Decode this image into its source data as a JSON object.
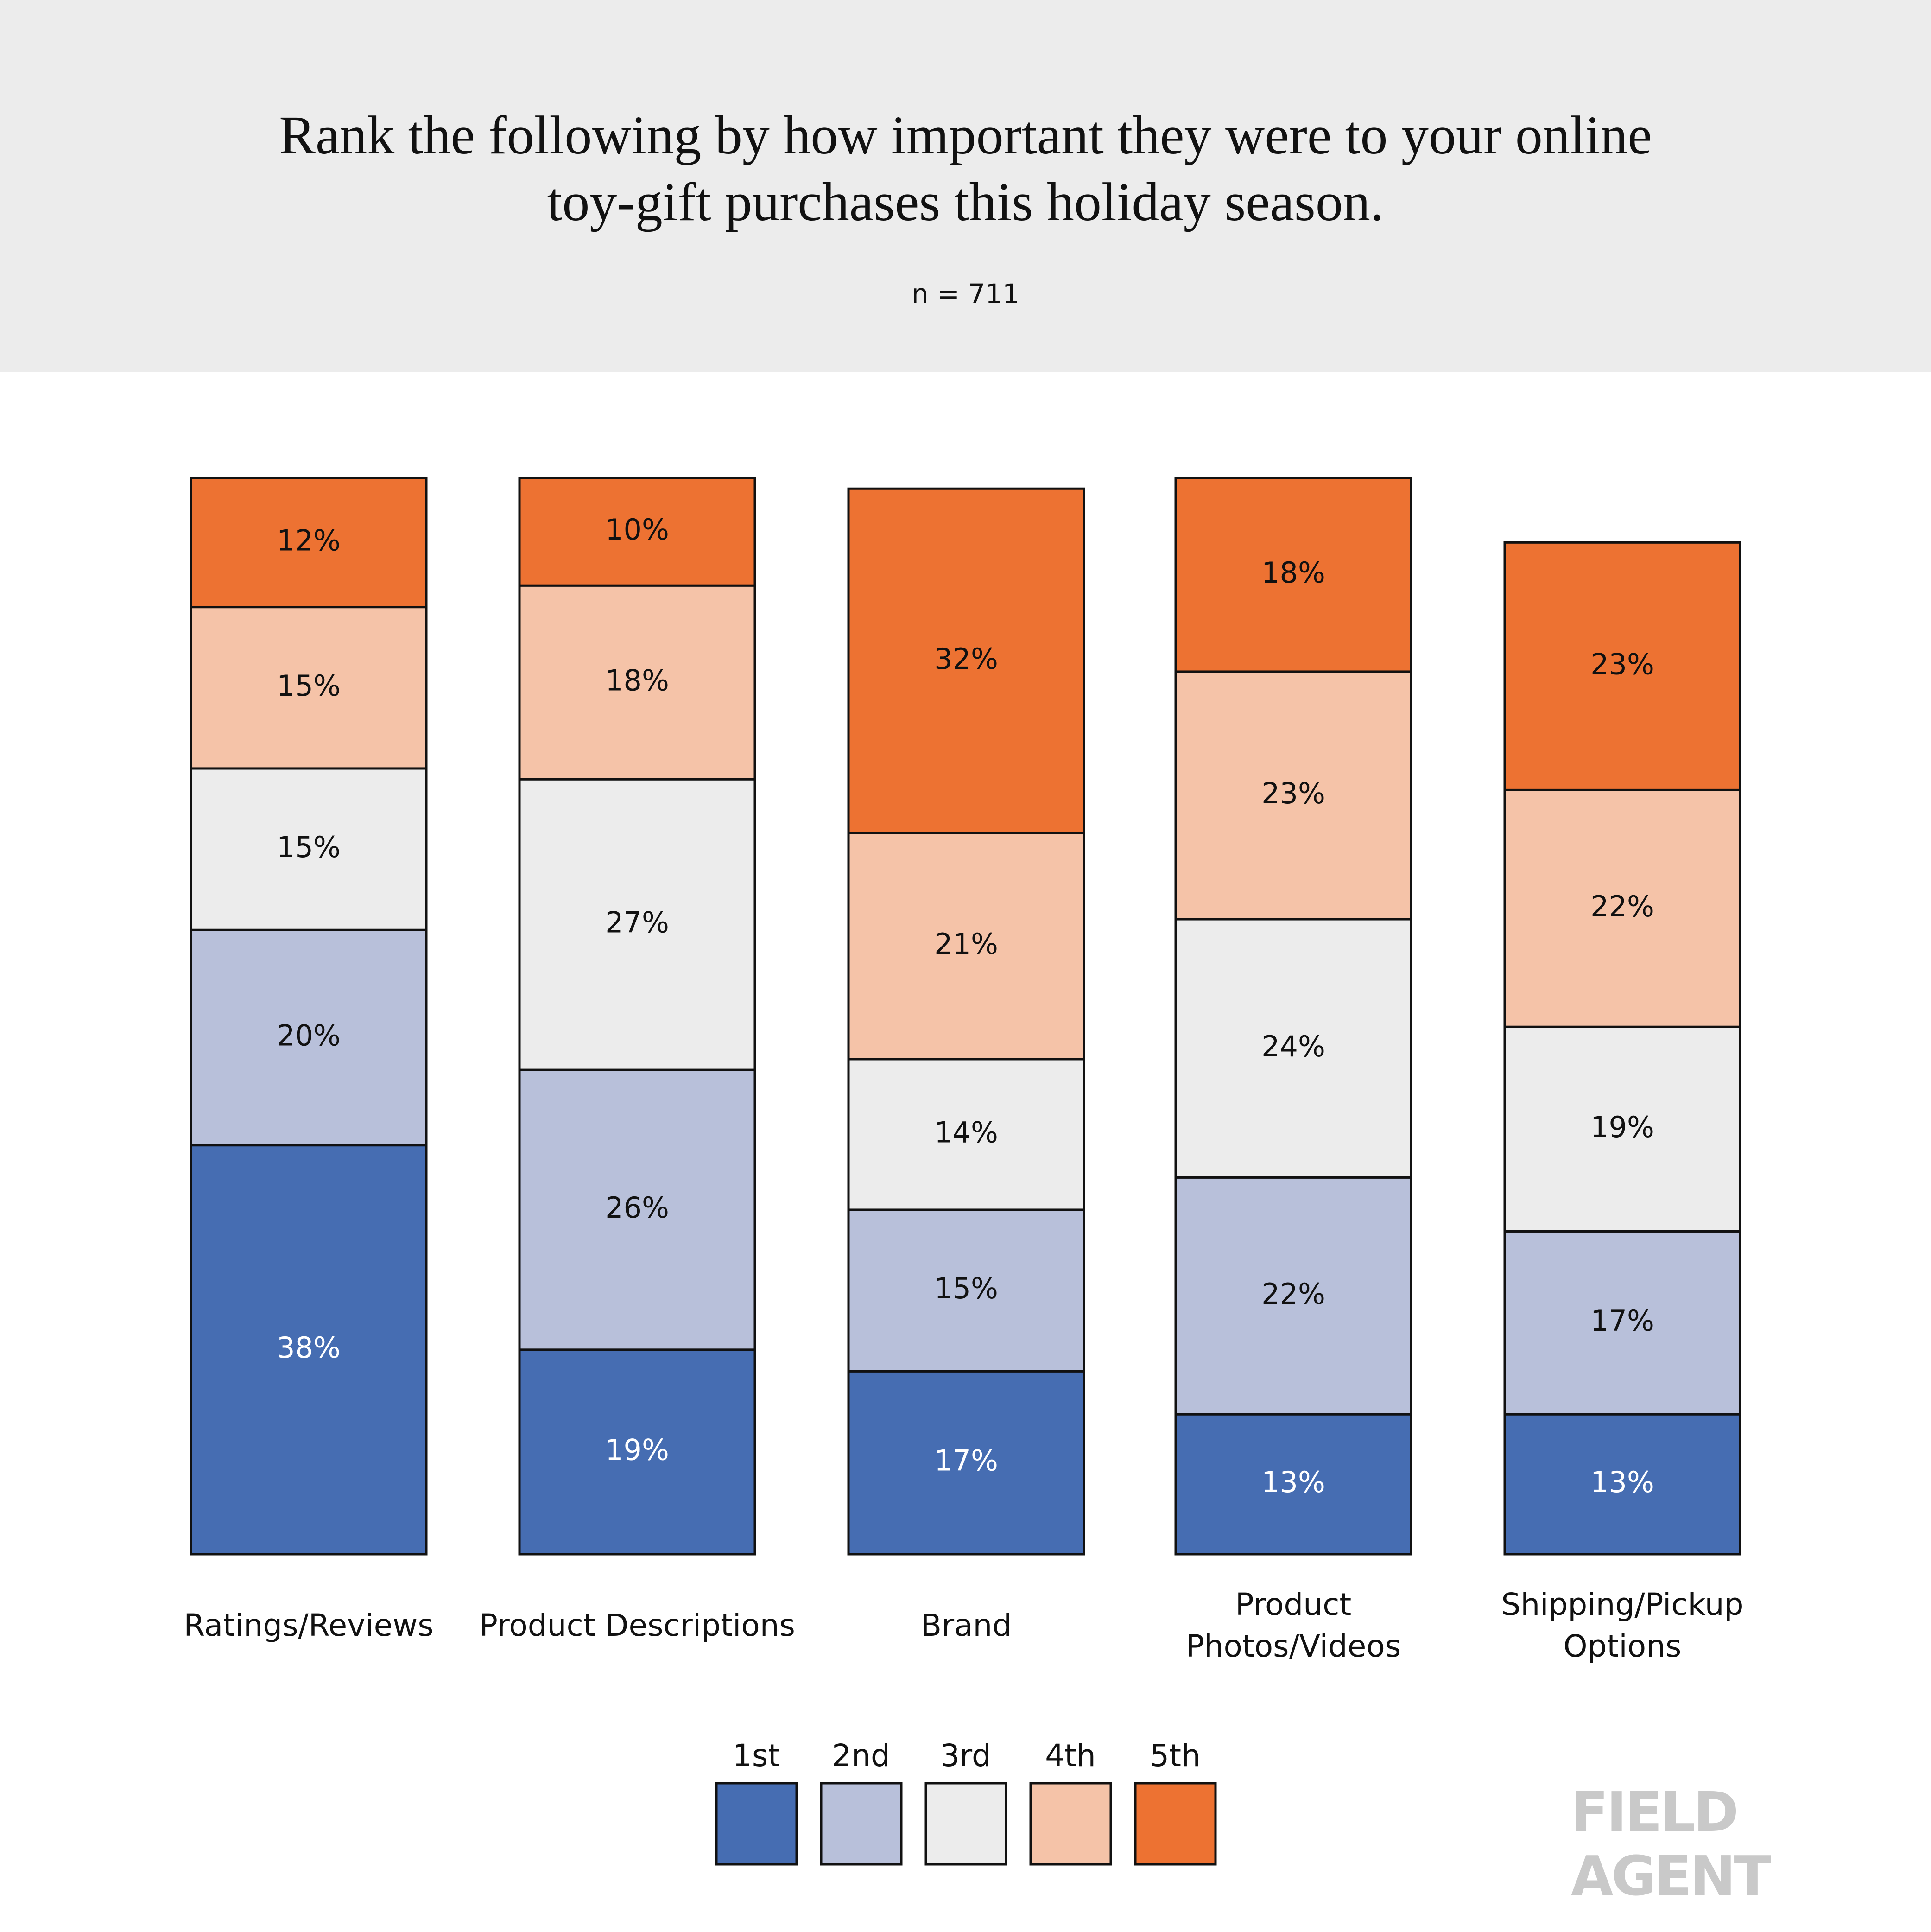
{
  "chart_data": {
    "type": "stacked_bar",
    "title": "Rank the following by how important they were to your online toy-gift purchases this holiday season.",
    "subtitle": "n = 711",
    "categories": [
      "Ratings/Reviews",
      "Product Descriptions",
      "Brand",
      "Product Photos/Videos",
      "Shipping/Pickup Options"
    ],
    "series": [
      {
        "name": "1st",
        "color": "#466db2",
        "values": [
          38,
          19,
          17,
          13,
          13
        ],
        "value_labels": [
          "38%",
          "19%",
          "17%",
          "13%",
          "13%"
        ]
      },
      {
        "name": "2nd",
        "color": "#b8c0da",
        "values": [
          20,
          26,
          15,
          22,
          17
        ],
        "value_labels": [
          "20%",
          "26%",
          "15%",
          "22%",
          "17%"
        ]
      },
      {
        "name": "3rd",
        "color": "#ececec",
        "values": [
          15,
          27,
          14,
          24,
          19
        ],
        "value_labels": [
          "15%",
          "27%",
          "14%",
          "24%",
          "19%"
        ]
      },
      {
        "name": "4th",
        "color": "#f5c3a8",
        "values": [
          15,
          18,
          21,
          23,
          22
        ],
        "value_labels": [
          "15%",
          "18%",
          "21%",
          "23%",
          "22%"
        ]
      },
      {
        "name": "5th",
        "color": "#ed7232",
        "values": [
          12,
          10,
          32,
          18,
          23
        ],
        "value_labels": [
          "12%",
          "10%",
          "32%",
          "18%",
          "23%"
        ]
      }
    ],
    "ylim": [
      0,
      100
    ],
    "logo": "FIELD AGENT"
  }
}
